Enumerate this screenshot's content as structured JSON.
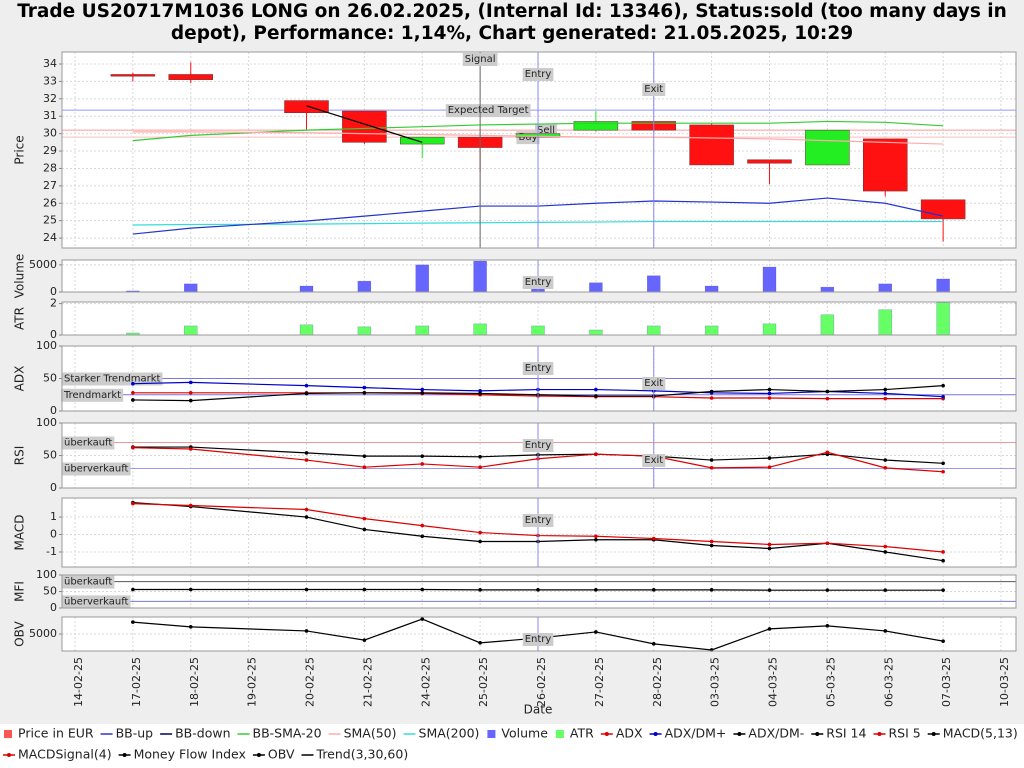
{
  "title": "Trade US20717M1036 LONG on 26.02.2025, (Internal Id: 13346), Status:sold (too many days in depot), Performance: 1,14%, Chart generated: 21.05.2025, 10:29",
  "x_axis": {
    "label": "Date",
    "categories": [
      "14-02-25",
      "17-02-25",
      "18-02-25",
      "19-02-25",
      "20-02-25",
      "21-02-25",
      "24-02-25",
      "25-02-25",
      "26-02-25",
      "27-02-25",
      "28-02-25",
      "03-03-25",
      "04-03-25",
      "05-03-25",
      "06-03-25",
      "07-03-25",
      "10-03-25"
    ]
  },
  "dates": [
    "17-02-25",
    "18-02-25",
    "20-02-25",
    "21-02-25",
    "24-02-25",
    "25-02-25",
    "26-02-25",
    "27-02-25",
    "28-02-25",
    "03-03-25",
    "04-03-25",
    "05-03-25",
    "06-03-25",
    "07-03-25"
  ],
  "chart_data": [
    {
      "type": "candlestick",
      "ylabel": "Price",
      "ylim": [
        23.43,
        34.69
      ],
      "yticks": [
        24,
        25,
        26,
        27,
        28,
        29,
        30,
        31,
        32,
        33,
        34
      ],
      "grid": true,
      "candles": {
        "name": "Price in EUR",
        "color": "#ff5555",
        "up_color": "#22ee22",
        "down_color": "#ff1111",
        "open": [
          33.4,
          33.4,
          31.9,
          31.3,
          29.4,
          29.8,
          29.8,
          30.2,
          30.7,
          30.5,
          28.5,
          28.2,
          29.7,
          26.2
        ],
        "high": [
          33.5,
          34.1,
          31.9,
          31.3,
          29.8,
          29.8,
          31.1,
          31.3,
          30.7,
          30.6,
          28.5,
          30.2,
          29.7,
          26.2
        ],
        "low": [
          33.0,
          32.9,
          30.2,
          29.4,
          28.6,
          27.8,
          29.6,
          30.1,
          30.1,
          28.2,
          27.1,
          28.2,
          26.4,
          23.8
        ],
        "close": [
          33.3,
          33.1,
          31.2,
          29.5,
          29.8,
          29.2,
          30.0,
          30.7,
          30.2,
          28.2,
          28.3,
          30.2,
          26.7,
          25.1
        ]
      },
      "series": [
        {
          "name": "BB-up",
          "color": "#3333cc",
          "markers": false,
          "values": [
            null,
            null,
            null,
            null,
            null,
            null,
            null,
            null,
            null,
            null,
            null,
            null,
            null,
            null
          ]
        },
        {
          "name": "BB-down",
          "color": "#000066",
          "markers": false,
          "values": [
            null,
            null,
            null,
            null,
            null,
            null,
            null,
            null,
            null,
            null,
            null,
            null,
            null,
            null
          ]
        },
        {
          "name": "BB-SMA-20",
          "color": "#33cc33",
          "markers": false,
          "values": [
            29.6,
            29.9,
            30.2,
            30.3,
            30.4,
            30.5,
            30.55,
            30.6,
            30.6,
            30.6,
            30.6,
            30.7,
            30.65,
            30.45
          ]
        },
        {
          "name": "SMA(50)",
          "color": "#ffaaaa",
          "markers": false,
          "values": [
            30.1,
            30.1,
            30.05,
            30.0,
            29.95,
            29.9,
            29.85,
            29.8,
            29.8,
            29.75,
            29.7,
            29.6,
            29.5,
            29.4
          ]
        },
        {
          "name": "SMA(200)",
          "color": "#33dddd",
          "markers": false,
          "values": [
            24.75,
            24.78,
            24.8,
            24.83,
            24.86,
            24.88,
            24.9,
            24.92,
            24.95,
            24.95,
            24.95,
            24.95,
            24.95,
            24.95
          ]
        },
        {
          "color": "#2233cc",
          "markers": false,
          "values": [
            24.23,
            24.57,
            24.98,
            25.26,
            25.55,
            25.84,
            25.84,
            26.0,
            26.13,
            26.07,
            26.0,
            26.3,
            26.0,
            25.26
          ]
        }
      ],
      "levels": [
        {
          "value": 31.35,
          "label": "Expected Target",
          "color": "#9999ff",
          "date": "25-02-25"
        },
        {
          "value": 30.2,
          "label": "Sell",
          "color": "#ff9999",
          "date": "26-02-25"
        },
        {
          "value": 29.8,
          "label": "Buy",
          "color": "#ffbbbb",
          "date": "26-02-25"
        }
      ],
      "vlines": [
        {
          "date": "25-02-25",
          "label": "Signal",
          "color": "#666666"
        },
        {
          "date": "26-02-25",
          "label": "Entry",
          "color": "#8888ee"
        },
        {
          "date": "28-02-25",
          "label": "Exit",
          "color": "#8888ee"
        }
      ]
    },
    {
      "type": "bar",
      "ylabel": "Volume",
      "ylim": [
        0,
        5900
      ],
      "yticks": [
        0,
        5000
      ],
      "grid": true,
      "series": [
        {
          "name": "Volume",
          "color": "#6666ff",
          "values": [
            200,
            1500,
            1100,
            2000,
            5000,
            5700,
            1500,
            1700,
            3000,
            1100,
            4600,
            900,
            1500,
            2400
          ]
        }
      ],
      "levels": [],
      "vlines": [
        {
          "date": "26-02-25",
          "label": "Entry",
          "color": "#8888ee"
        }
      ]
    },
    {
      "type": "bar",
      "ylabel": "ATR",
      "ylim": [
        0,
        2.1
      ],
      "yticks": [
        0,
        2
      ],
      "grid": true,
      "series": [
        {
          "name": "ATR",
          "color": "#66ff66",
          "values": [
            0.13,
            0.58,
            0.65,
            0.52,
            0.58,
            0.71,
            0.58,
            0.32,
            0.58,
            0.58,
            0.71,
            1.29,
            1.61,
            2.06
          ]
        }
      ],
      "levels": [],
      "vlines": []
    },
    {
      "type": "line",
      "ylabel": "ADX",
      "ylim": [
        0,
        100
      ],
      "yticks": [
        0,
        50,
        100
      ],
      "grid": true,
      "series": [
        {
          "name": "ADX",
          "color": "#dd0000",
          "markers": true,
          "values": [
            28,
            28,
            28,
            28,
            27,
            25,
            23,
            22,
            22,
            20,
            20,
            19,
            19,
            19
          ]
        },
        {
          "name": "ADX/DM+",
          "color": "#0000cc",
          "markers": true,
          "values": [
            42,
            44,
            39,
            36,
            33,
            31,
            33,
            33,
            31,
            28,
            27,
            30,
            27,
            22
          ]
        },
        {
          "name": "ADX/DM-",
          "color": "#000000",
          "markers": true,
          "values": [
            17,
            16,
            27,
            28,
            28,
            27,
            25,
            23,
            23,
            30,
            33,
            30,
            33,
            39
          ]
        }
      ],
      "levels": [
        {
          "value": 50,
          "label": "Starker Trendmarkt",
          "color": "#7777dd"
        },
        {
          "value": 25,
          "label": "Trendmarkt",
          "color": "#7777dd"
        }
      ],
      "vlines": [
        {
          "date": "26-02-25",
          "label": "Entry",
          "color": "#8888ee"
        },
        {
          "date": "28-02-25",
          "label": "Exit",
          "color": "#8888ee"
        }
      ]
    },
    {
      "type": "line",
      "ylabel": "RSI",
      "ylim": [
        0,
        100
      ],
      "yticks": [
        0,
        50,
        100
      ],
      "grid": true,
      "series": [
        {
          "name": "RSI 14",
          "color": "#000000",
          "markers": true,
          "values": [
            63,
            63,
            54,
            49,
            49,
            48,
            51,
            52,
            49,
            43,
            46,
            52,
            43,
            38
          ]
        },
        {
          "name": "RSI 5",
          "color": "#dd0000",
          "markers": true,
          "values": [
            62,
            60,
            43,
            32,
            37,
            32,
            45,
            52,
            49,
            31,
            32,
            55,
            31,
            25
          ]
        }
      ],
      "levels": [
        {
          "value": 70,
          "label": "überkauft",
          "color": "#ee9999"
        },
        {
          "value": 30,
          "label": "überverkauft",
          "color": "#9999ee"
        }
      ],
      "vlines": [
        {
          "date": "26-02-25",
          "label": "Entry",
          "color": "#8888ee"
        },
        {
          "date": "28-02-25",
          "label": "Exit",
          "color": "#8888ee"
        }
      ]
    },
    {
      "type": "line",
      "ylabel": "MACD",
      "ylim": [
        -1.86,
        2.09
      ],
      "yticks": [
        -1,
        0,
        1
      ],
      "grid": true,
      "series": [
        {
          "name": "MACD(5,13)",
          "color": "#000000",
          "markers": true,
          "values": [
            1.83,
            1.6,
            1.0,
            0.29,
            -0.1,
            -0.4,
            -0.4,
            -0.3,
            -0.3,
            -0.63,
            -0.8,
            -0.5,
            -1.0,
            -1.5
          ]
        },
        {
          "name": "MACDSignal(4)",
          "color": "#dd0000",
          "markers": true,
          "values": [
            1.77,
            1.66,
            1.43,
            0.91,
            0.51,
            0.11,
            -0.06,
            -0.1,
            -0.23,
            -0.4,
            -0.57,
            -0.5,
            -0.69,
            -1.0
          ]
        }
      ],
      "levels": [],
      "vlines": [
        {
          "date": "26-02-25",
          "label": "Entry",
          "color": "#8888ee"
        }
      ]
    },
    {
      "type": "line",
      "ylabel": "MFI",
      "ylim": [
        0,
        100
      ],
      "yticks": [
        0,
        50,
        100
      ],
      "grid": true,
      "series": [
        {
          "name": "Money Flow Index",
          "color": "#000000",
          "markers": true,
          "values": [
            56,
            56,
            56,
            56,
            56,
            55,
            55,
            55,
            55,
            55,
            54,
            54,
            54,
            54
          ]
        }
      ],
      "levels": [
        {
          "value": 80,
          "label": "überkauft",
          "color": "#555555"
        },
        {
          "value": 20,
          "label": "überverkauft",
          "color": "#7777dd"
        }
      ],
      "vlines": []
    },
    {
      "type": "line",
      "ylabel": "OBV",
      "ylim": [
        0,
        10000
      ],
      "yticks": [
        5000
      ],
      "grid": true,
      "series": [
        {
          "name": "OBV",
          "color": "#000000",
          "markers": true,
          "values": [
            8500,
            7100,
            5900,
            3200,
            9400,
            2400,
            3800,
            5600,
            2100,
            300,
            6500,
            7400,
            5900,
            2900
          ]
        }
      ],
      "levels": [],
      "vlines": [
        {
          "date": "26-02-25",
          "label": "Entry",
          "color": "#8888ee"
        }
      ]
    }
  ],
  "trend": {
    "name": "Trend(3,30,60)",
    "color": "#000000",
    "x": [
      "20-02-25",
      "24-02-25"
    ],
    "values": [
      31.6,
      29.5
    ]
  }
}
